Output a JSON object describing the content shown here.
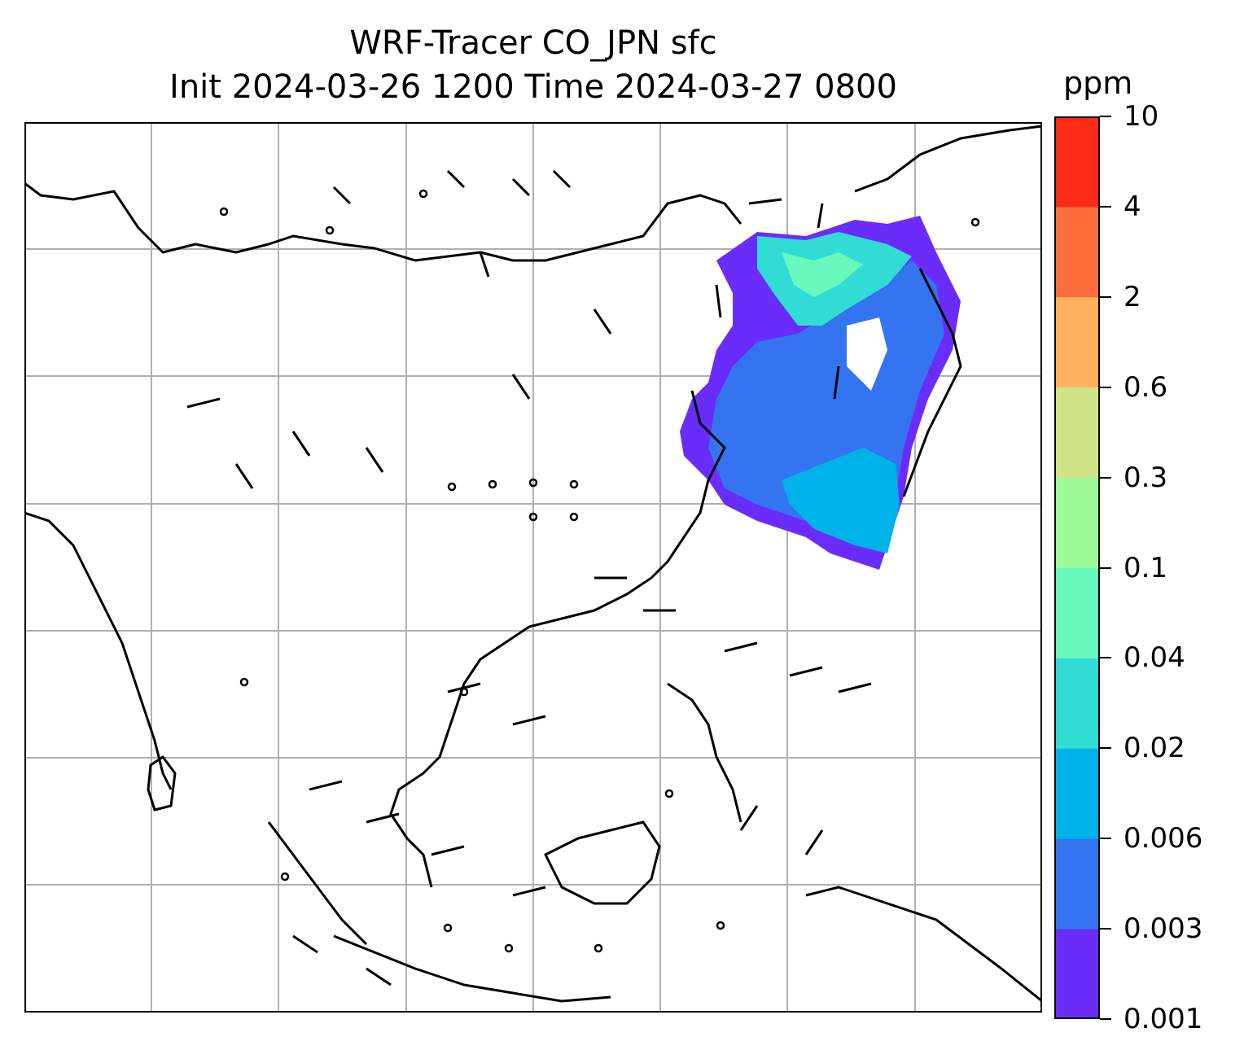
{
  "title": {
    "line1": "WRF-Tracer CO_JPN sfc",
    "line2": "Init 2024-03-26 1200 Time 2024-03-27 0800"
  },
  "map": {
    "field": "CO_JPN surface tracer concentration",
    "overlay": "wind barbs",
    "coastline_color": "#000000",
    "gridline_color": "#b0b0b0"
  },
  "colorbar": {
    "units": "ppm",
    "levels": [
      "0.001",
      "0.003",
      "0.006",
      "0.02",
      "0.04",
      "0.1",
      "0.3",
      "0.6",
      "2",
      "4",
      "10"
    ],
    "colors": [
      "#6a2cf9",
      "#3474f0",
      "#00b2ea",
      "#31dcd4",
      "#67f8bb",
      "#9dfc97",
      "#cfe487",
      "#fdb15f",
      "#fd6e3c",
      "#ff2b18"
    ]
  }
}
